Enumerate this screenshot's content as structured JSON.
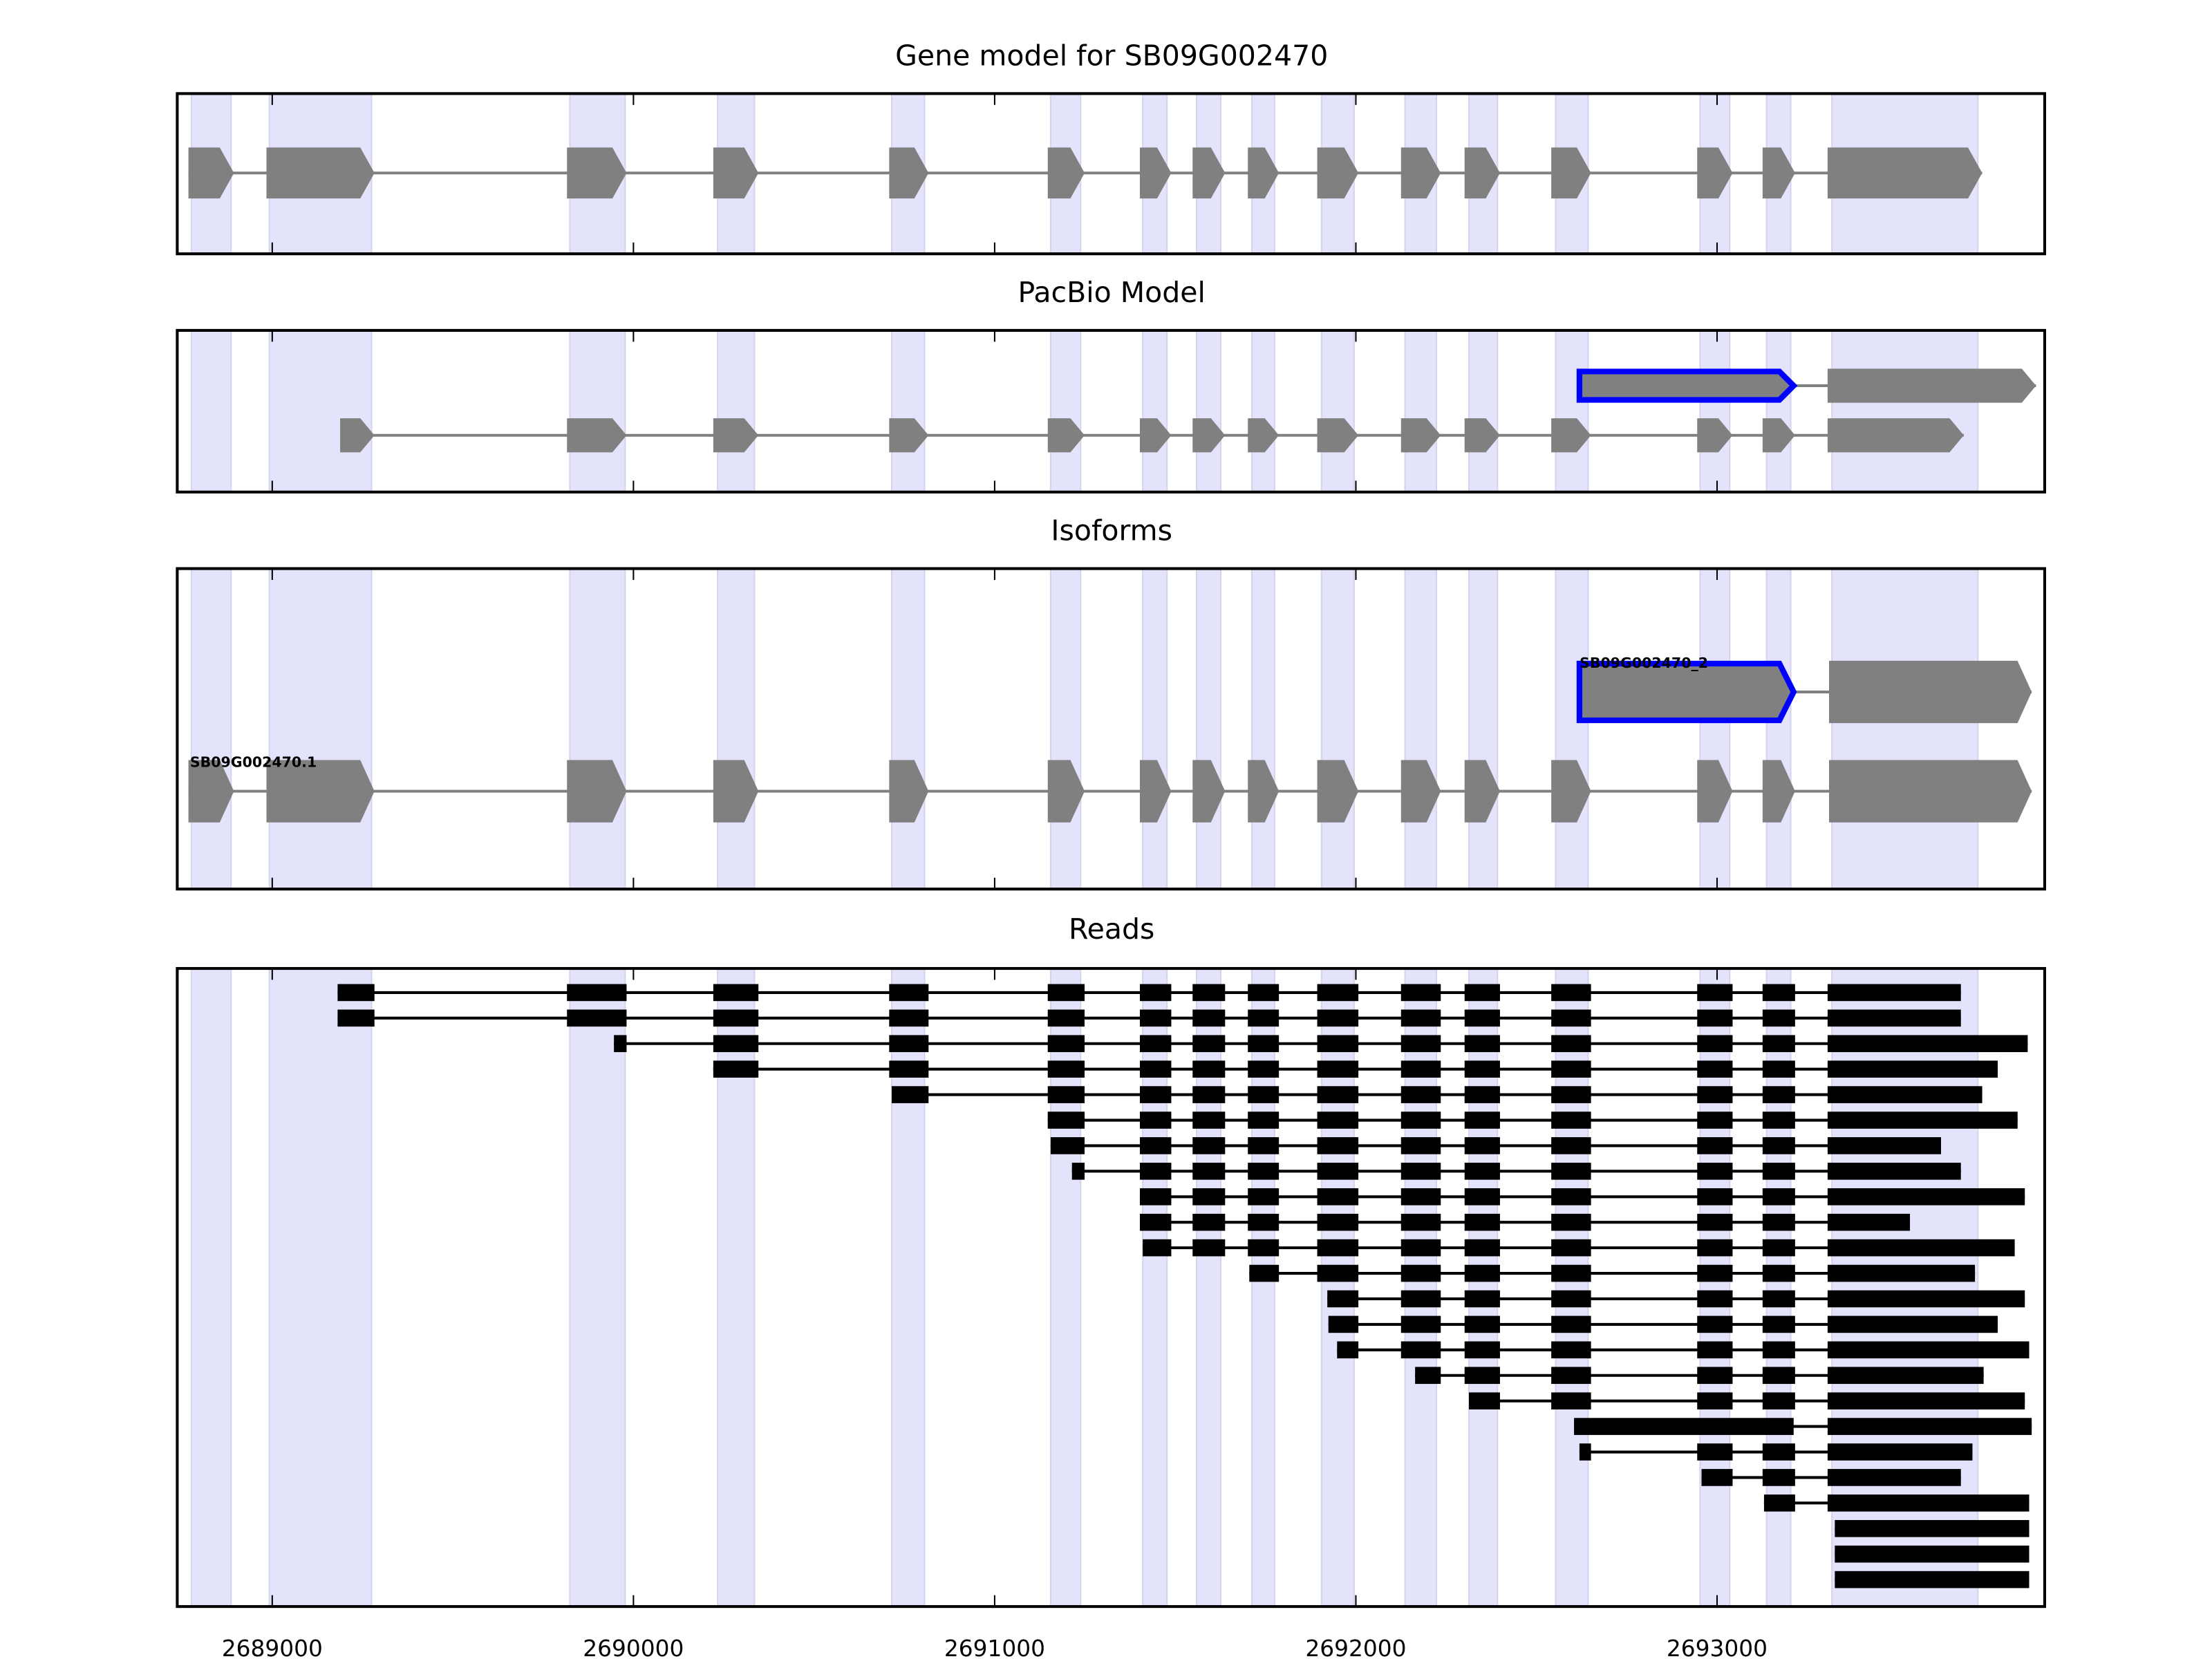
{
  "chart_data": {
    "type": "gene-track",
    "xlim": [
      2688737,
      2693907
    ],
    "xticks": [
      2689000,
      2690000,
      2691000,
      2692000,
      2693000
    ],
    "xtick_labels": [
      "2689000",
      "2690000",
      "2691000",
      "2692000",
      "2693000"
    ],
    "colors": {
      "shade": "#e3e3fc",
      "exon": "#808080",
      "highlight": "#0000ff",
      "read": "#000000"
    },
    "shaded_exons": [
      [
        2688776,
        2688886
      ],
      [
        2688992,
        2689275
      ],
      [
        2689824,
        2689977
      ],
      [
        2690233,
        2690335
      ],
      [
        2690715,
        2690806
      ],
      [
        2691155,
        2691238
      ],
      [
        2691410,
        2691477
      ],
      [
        2691559,
        2691626
      ],
      [
        2691712,
        2691775
      ],
      [
        2691905,
        2691995
      ],
      [
        2692136,
        2692223
      ],
      [
        2692313,
        2692392
      ],
      [
        2692553,
        2692643
      ],
      [
        2692953,
        2693035
      ],
      [
        2693137,
        2693204
      ],
      [
        2693318,
        2693722
      ]
    ],
    "panels": [
      {
        "title": "Gene model for SB09G002470",
        "rows": [
          {
            "label": "",
            "exons": [
              [
                2688768,
                2688894
              ],
              [
                2688984,
                2689283
              ],
              [
                2689816,
                2689981
              ],
              [
                2690221,
                2690346
              ],
              [
                2690708,
                2690817
              ],
              [
                2691147,
                2691249
              ],
              [
                2691402,
                2691489
              ],
              [
                2691548,
                2691638
              ],
              [
                2691701,
                2691787
              ],
              [
                2691893,
                2692007
              ],
              [
                2692125,
                2692235
              ],
              [
                2692301,
                2692399
              ],
              [
                2692541,
                2692651
              ],
              [
                2692945,
                2693043
              ],
              [
                2693126,
                2693216
              ],
              [
                2693306,
                2693734
              ]
            ],
            "highlight": []
          }
        ]
      },
      {
        "title": "PacBio Model",
        "rows": [
          {
            "label": "",
            "exons": [
              [
                2692619,
                2693212
              ],
              [
                2693306,
                2693883
              ]
            ],
            "highlight": [
              0
            ]
          },
          {
            "label": "",
            "exons": [
              [
                2689188,
                2689283
              ],
              [
                2689816,
                2689981
              ],
              [
                2690221,
                2690346
              ],
              [
                2690708,
                2690817
              ],
              [
                2691147,
                2691249
              ],
              [
                2691402,
                2691489
              ],
              [
                2691548,
                2691638
              ],
              [
                2691701,
                2691787
              ],
              [
                2691893,
                2692007
              ],
              [
                2692125,
                2692235
              ],
              [
                2692301,
                2692399
              ],
              [
                2692541,
                2692651
              ],
              [
                2692945,
                2693043
              ],
              [
                2693126,
                2693216
              ],
              [
                2693306,
                2693683
              ]
            ],
            "highlight": []
          }
        ]
      },
      {
        "title": "Isoforms",
        "rows": [
          {
            "label": "SB09G002470_2",
            "exons": [
              [
                2692619,
                2693212
              ],
              [
                2693310,
                2693871
              ]
            ],
            "highlight": [
              0
            ]
          },
          {
            "label": "SB09G002470.1",
            "exons": [
              [
                2688768,
                2688894
              ],
              [
                2688984,
                2689283
              ],
              [
                2689816,
                2689981
              ],
              [
                2690221,
                2690346
              ],
              [
                2690708,
                2690817
              ],
              [
                2691147,
                2691249
              ],
              [
                2691402,
                2691489
              ],
              [
                2691548,
                2691638
              ],
              [
                2691701,
                2691787
              ],
              [
                2691893,
                2692007
              ],
              [
                2692125,
                2692235
              ],
              [
                2692301,
                2692399
              ],
              [
                2692541,
                2692651
              ],
              [
                2692945,
                2693043
              ],
              [
                2693126,
                2693216
              ],
              [
                2693310,
                2693871
              ]
            ],
            "highlight": []
          }
        ]
      },
      {
        "title": "Reads"
      }
    ],
    "reads": [
      {
        "start": 2689181,
        "end": 2693675
      },
      {
        "start": 2689181,
        "end": 2693675
      },
      {
        "start": 2689946,
        "end": 2693860
      },
      {
        "start": 2690221,
        "end": 2693777
      },
      {
        "start": 2690715,
        "end": 2693734
      },
      {
        "start": 2691147,
        "end": 2693832
      },
      {
        "start": 2691155,
        "end": 2693620
      },
      {
        "start": 2691214,
        "end": 2693675
      },
      {
        "start": 2691398,
        "end": 2693852
      },
      {
        "start": 2691402,
        "end": 2693534
      },
      {
        "start": 2691410,
        "end": 2693824
      },
      {
        "start": 2691705,
        "end": 2693714
      },
      {
        "start": 2691921,
        "end": 2693852
      },
      {
        "start": 2691924,
        "end": 2693777
      },
      {
        "start": 2691948,
        "end": 2693864
      },
      {
        "start": 2692164,
        "end": 2693738
      },
      {
        "start": 2692313,
        "end": 2693852
      },
      {
        "start": 2692604,
        "end": 2693871,
        "blocks": [
          [
            2692604,
            2693212
          ],
          [
            2693306,
            2693871
          ]
        ]
      },
      {
        "start": 2692619,
        "end": 2693707
      },
      {
        "start": 2692957,
        "end": 2693675
      },
      {
        "start": 2693130,
        "end": 2693864
      },
      {
        "start": 2693326,
        "end": 2693864
      },
      {
        "start": 2693326,
        "end": 2693864
      },
      {
        "start": 2693326,
        "end": 2693864
      }
    ]
  }
}
